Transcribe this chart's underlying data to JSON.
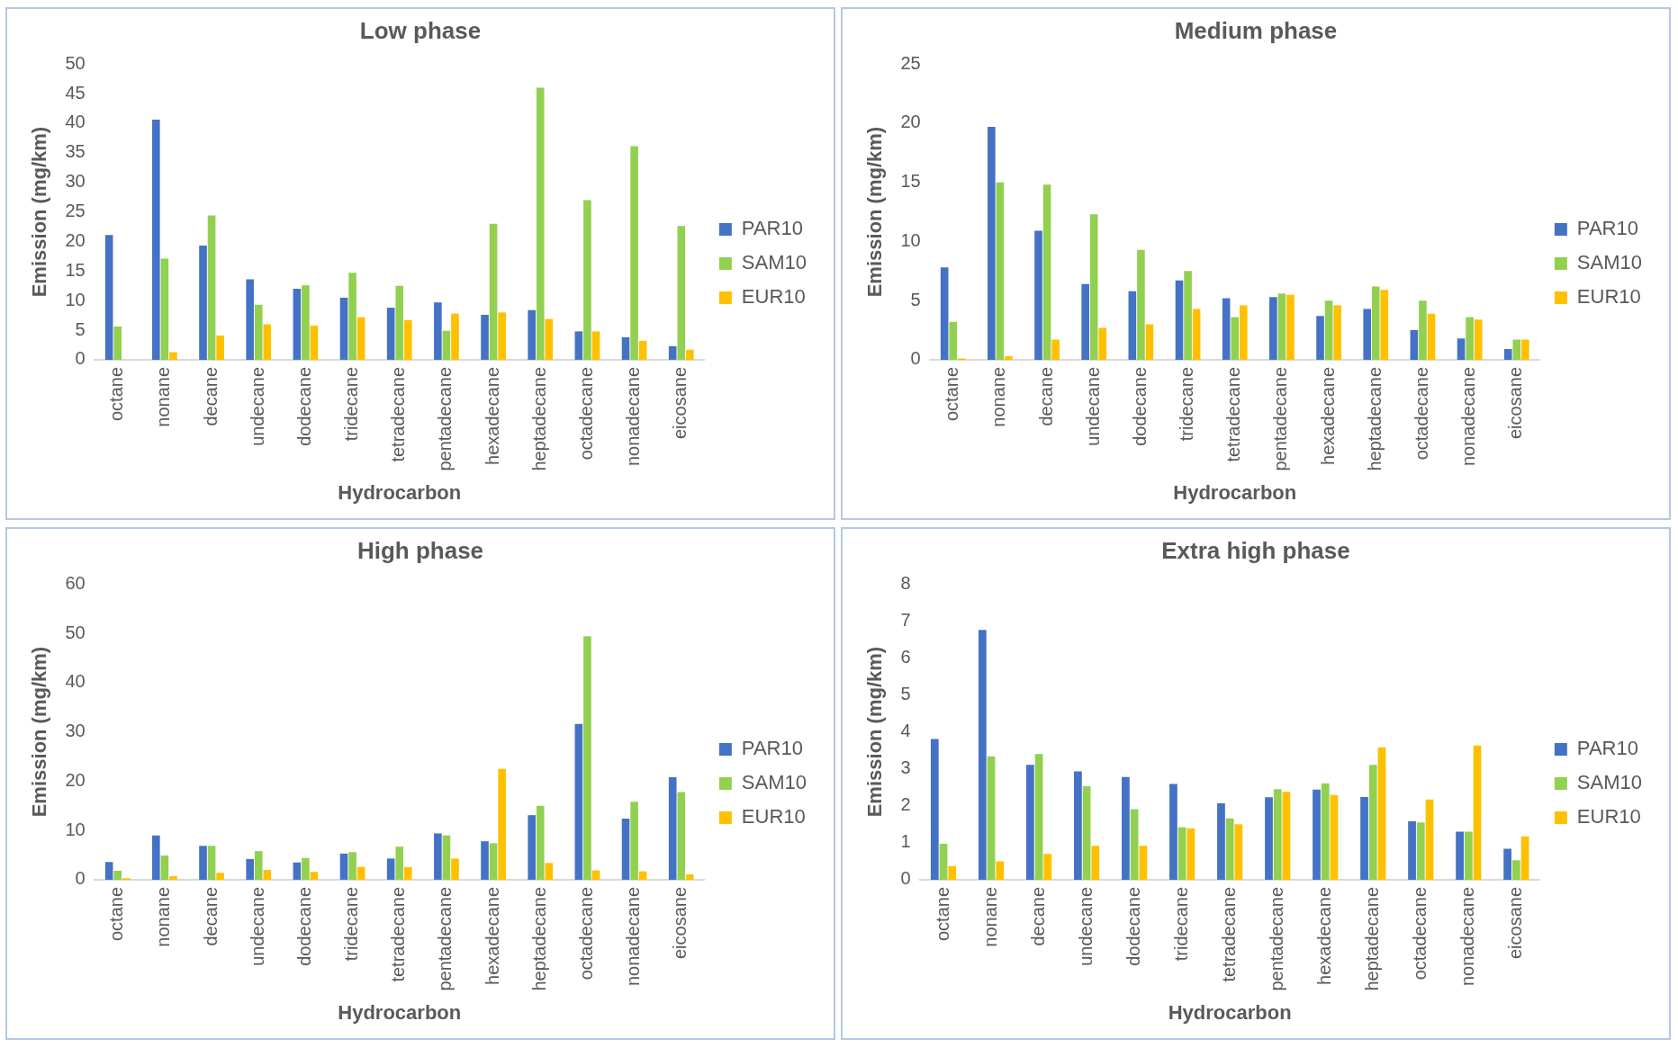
{
  "chart_data": [
    {
      "type": "bar",
      "title": "Low phase",
      "xlabel": "Hydrocarbon",
      "ylabel": "Emission (mg/km)",
      "categories": [
        "octane",
        "nonane",
        "decane",
        "undecane",
        "dodecane",
        "tridecane",
        "tetradecane",
        "pentadecane",
        "hexadecane",
        "heptadecane",
        "octadecane",
        "nonadecane",
        "eicosane"
      ],
      "ylim": [
        0,
        50
      ],
      "yticks": [
        0,
        5,
        10,
        15,
        20,
        25,
        30,
        35,
        40,
        45,
        50
      ],
      "grid": false,
      "legend": "right",
      "series": [
        {
          "name": "PAR10",
          "color": "#4472c4",
          "values": [
            21.1,
            40.6,
            19.3,
            13.6,
            12.0,
            10.5,
            8.8,
            9.7,
            7.6,
            8.4,
            4.8,
            3.8,
            2.3
          ]
        },
        {
          "name": "SAM10",
          "color": "#92d050",
          "values": [
            5.6,
            17.1,
            24.4,
            9.3,
            12.6,
            14.7,
            12.5,
            4.9,
            23.0,
            46.0,
            27.0,
            36.1,
            22.6
          ]
        },
        {
          "name": "EUR10",
          "color": "#ffc000",
          "values": [
            0,
            1.3,
            4.1,
            6.0,
            5.8,
            7.2,
            6.7,
            7.8,
            8.0,
            6.9,
            4.8,
            3.2,
            1.7
          ]
        }
      ]
    },
    {
      "type": "bar",
      "title": "Medium phase",
      "xlabel": "Hydrocarbon",
      "ylabel": "Emission (mg/km)",
      "categories": [
        "octane",
        "nonane",
        "decane",
        "undecane",
        "dodecane",
        "tridecane",
        "tetradecane",
        "pentadecane",
        "hexadecane",
        "heptadecane",
        "octadecane",
        "nonadecane",
        "eicosane"
      ],
      "ylim": [
        0,
        25
      ],
      "yticks": [
        0,
        5,
        10,
        15,
        20,
        25
      ],
      "grid": false,
      "legend": "right",
      "series": [
        {
          "name": "PAR10",
          "color": "#4472c4",
          "values": [
            7.8,
            19.7,
            10.9,
            6.4,
            5.8,
            6.7,
            5.2,
            5.3,
            3.7,
            4.3,
            2.5,
            1.8,
            0.9
          ]
        },
        {
          "name": "SAM10",
          "color": "#92d050",
          "values": [
            3.2,
            15.0,
            14.8,
            12.3,
            9.3,
            7.5,
            3.6,
            5.6,
            5.0,
            6.2,
            5.0,
            3.6,
            1.7
          ]
        },
        {
          "name": "EUR10",
          "color": "#ffc000",
          "values": [
            0.1,
            0.3,
            1.7,
            2.7,
            3.0,
            4.3,
            4.6,
            5.5,
            4.6,
            5.9,
            3.9,
            3.4,
            1.7
          ]
        }
      ]
    },
    {
      "type": "bar",
      "title": "High phase",
      "xlabel": "Hydrocarbon",
      "ylabel": "Emission (mg/km)",
      "categories": [
        "octane",
        "nonane",
        "decane",
        "undecane",
        "dodecane",
        "tridecane",
        "tetradecane",
        "pentadecane",
        "hexadecane",
        "heptadecane",
        "octadecane",
        "nonadecane",
        "eicosane"
      ],
      "ylim": [
        0,
        60
      ],
      "yticks": [
        0,
        10,
        20,
        30,
        40,
        50,
        60
      ],
      "grid": false,
      "legend": "right",
      "series": [
        {
          "name": "PAR10",
          "color": "#4472c4",
          "values": [
            3.6,
            9.0,
            6.9,
            4.2,
            3.5,
            5.3,
            4.3,
            9.4,
            7.8,
            13.1,
            31.6,
            12.4,
            20.8
          ]
        },
        {
          "name": "SAM10",
          "color": "#92d050",
          "values": [
            1.8,
            4.9,
            6.9,
            5.8,
            4.4,
            5.6,
            6.7,
            9.0,
            7.4,
            15.0,
            49.4,
            15.8,
            17.8
          ]
        },
        {
          "name": "EUR10",
          "color": "#ffc000",
          "values": [
            0.3,
            0.7,
            1.4,
            2.0,
            1.6,
            2.6,
            2.6,
            4.3,
            22.5,
            3.4,
            1.9,
            1.7,
            1.1
          ]
        }
      ]
    },
    {
      "type": "bar",
      "title": "Extra high phase",
      "xlabel": "Hydrocarbon",
      "ylabel": "Emission (mg/km)",
      "categories": [
        "octane",
        "nonane",
        "decane",
        "undecane",
        "dodecane",
        "tridecane",
        "tetradecane",
        "pentadecane",
        "hexadecane",
        "heptadecane",
        "octadecane",
        "nonadecane",
        "eicosane"
      ],
      "ylim": [
        0,
        8
      ],
      "yticks": [
        0,
        1,
        2,
        3,
        4,
        5,
        6,
        7,
        8
      ],
      "grid": false,
      "legend": "right",
      "series": [
        {
          "name": "PAR10",
          "color": "#4472c4",
          "values": [
            3.81,
            6.76,
            3.11,
            2.93,
            2.78,
            2.59,
            2.07,
            2.23,
            2.44,
            2.24,
            1.58,
            1.3,
            0.84
          ]
        },
        {
          "name": "SAM10",
          "color": "#92d050",
          "values": [
            0.97,
            3.34,
            3.4,
            2.53,
            1.91,
            1.42,
            1.66,
            2.45,
            2.61,
            3.11,
            1.55,
            1.3,
            0.53
          ]
        },
        {
          "name": "EUR10",
          "color": "#ffc000",
          "values": [
            0.37,
            0.5,
            0.7,
            0.92,
            0.92,
            1.39,
            1.5,
            2.38,
            2.29,
            3.58,
            2.17,
            3.63,
            1.17
          ]
        }
      ]
    }
  ]
}
